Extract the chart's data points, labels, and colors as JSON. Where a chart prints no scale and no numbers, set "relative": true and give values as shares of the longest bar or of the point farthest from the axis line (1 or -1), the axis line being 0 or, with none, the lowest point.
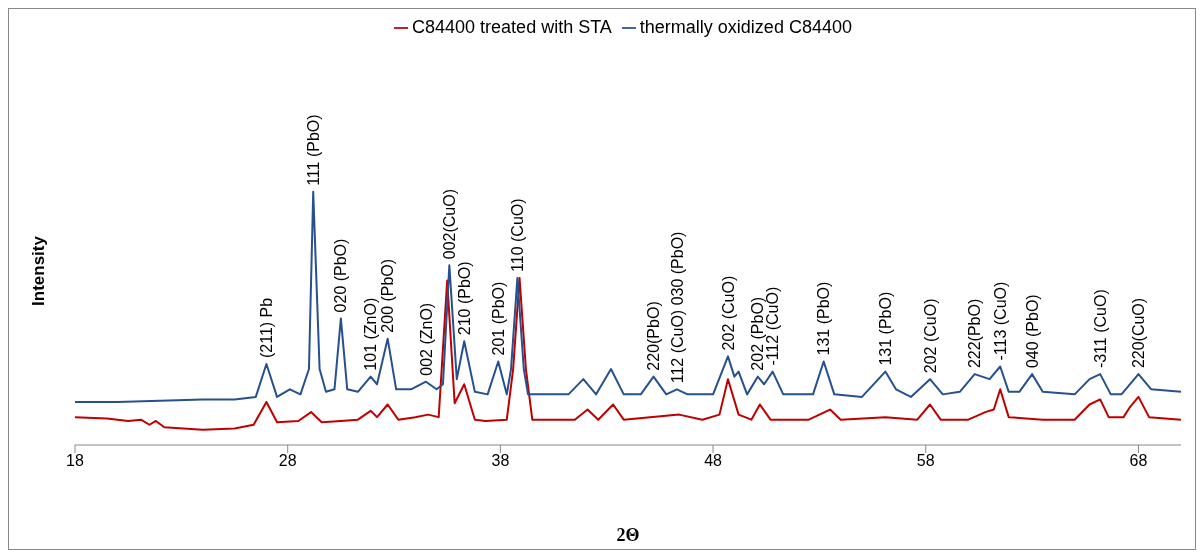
{
  "chart_data": {
    "type": "line",
    "relative": true,
    "xlabel": "2Θ",
    "ylabel": "Intensity",
    "xlim": [
      18,
      70
    ],
    "xticks": [
      18,
      28,
      38,
      48,
      58,
      68
    ],
    "legend": "top",
    "series": [
      {
        "name": "C84400 treated with STA",
        "color": "#c00000",
        "x": [
          18,
          19.5,
          20.5,
          21.1,
          21.5,
          21.8,
          22.2,
          24,
          25.5,
          26.4,
          27.0,
          27.5,
          28.5,
          29.1,
          29.6,
          30.5,
          31.3,
          31.9,
          32.2,
          32.7,
          33.2,
          34.0,
          34.6,
          35.1,
          35.5,
          35.85,
          36.3,
          36.8,
          37.3,
          38.3,
          38.6,
          38.9,
          39.2,
          39.5,
          41.5,
          42.1,
          42.6,
          43.3,
          43.8,
          46.4,
          47.5,
          48.3,
          48.7,
          49.2,
          49.8,
          50.2,
          50.7,
          52.5,
          53.5,
          54.0,
          56.1,
          57.6,
          58.2,
          58.7,
          60.0,
          60.8,
          61.2,
          61.5,
          61.9,
          63.5,
          65.0,
          65.7,
          66.2,
          66.6,
          67.3,
          67.6,
          68.0,
          68.5,
          70
        ],
        "values": [
          0.11,
          0.105,
          0.095,
          0.1,
          0.08,
          0.095,
          0.07,
          0.06,
          0.065,
          0.08,
          0.17,
          0.09,
          0.095,
          0.13,
          0.09,
          0.095,
          0.1,
          0.135,
          0.11,
          0.16,
          0.1,
          0.11,
          0.12,
          0.11,
          0.65,
          0.165,
          0.24,
          0.1,
          0.095,
          0.1,
          0.3,
          0.66,
          0.3,
          0.1,
          0.1,
          0.14,
          0.1,
          0.16,
          0.1,
          0.12,
          0.1,
          0.12,
          0.26,
          0.12,
          0.1,
          0.16,
          0.1,
          0.1,
          0.14,
          0.1,
          0.11,
          0.1,
          0.16,
          0.1,
          0.1,
          0.13,
          0.14,
          0.22,
          0.11,
          0.1,
          0.1,
          0.16,
          0.18,
          0.11,
          0.11,
          0.15,
          0.19,
          0.11,
          0.1
        ]
      },
      {
        "name": "thermally oxidized C84400",
        "color": "#27508f",
        "x": [
          18,
          20,
          22,
          24,
          25.5,
          26.5,
          27.0,
          27.5,
          28.1,
          28.6,
          29.0,
          29.2,
          29.5,
          29.8,
          30.2,
          30.5,
          30.8,
          31.3,
          31.9,
          32.2,
          32.7,
          33.1,
          33.8,
          34.5,
          35.0,
          35.3,
          35.6,
          35.95,
          36.3,
          36.8,
          37.4,
          37.9,
          38.3,
          38.5,
          38.8,
          39.1,
          39.3,
          41.2,
          41.9,
          42.5,
          43.2,
          43.8,
          44.6,
          45.2,
          45.8,
          46.3,
          46.8,
          48.0,
          48.7,
          49.0,
          49.2,
          49.6,
          50.1,
          50.4,
          50.8,
          51.3,
          52.7,
          53.2,
          53.7,
          55.0,
          56.1,
          56.6,
          57.3,
          58.2,
          58.8,
          59.6,
          60.3,
          61.0,
          61.5,
          61.9,
          62.4,
          63.0,
          63.5,
          65.0,
          65.7,
          66.2,
          66.7,
          67.2,
          68.0,
          68.6,
          70
        ],
        "values": [
          0.17,
          0.17,
          0.175,
          0.18,
          0.18,
          0.19,
          0.32,
          0.19,
          0.22,
          0.2,
          0.3,
          1.0,
          0.3,
          0.21,
          0.22,
          0.5,
          0.22,
          0.21,
          0.27,
          0.24,
          0.42,
          0.22,
          0.22,
          0.25,
          0.22,
          0.24,
          0.71,
          0.26,
          0.41,
          0.21,
          0.2,
          0.33,
          0.2,
          0.3,
          0.66,
          0.3,
          0.2,
          0.2,
          0.26,
          0.2,
          0.3,
          0.2,
          0.2,
          0.27,
          0.2,
          0.22,
          0.2,
          0.2,
          0.35,
          0.27,
          0.29,
          0.2,
          0.27,
          0.24,
          0.29,
          0.2,
          0.2,
          0.33,
          0.2,
          0.19,
          0.29,
          0.22,
          0.19,
          0.26,
          0.2,
          0.21,
          0.28,
          0.26,
          0.31,
          0.21,
          0.21,
          0.28,
          0.21,
          0.2,
          0.26,
          0.28,
          0.2,
          0.2,
          0.28,
          0.22,
          0.21
        ]
      }
    ],
    "annotations": [
      {
        "text": "(211) Pb",
        "x": 27.0,
        "y": 0.32
      },
      {
        "text": "111 (PbO)",
        "x": 29.2,
        "y": 1.0
      },
      {
        "text": "020 (PbO)",
        "x": 30.5,
        "y": 0.5
      },
      {
        "text": "101 (ZnO)",
        "x": 31.9,
        "y": 0.27
      },
      {
        "text": "200 (PbO)",
        "x": 32.7,
        "y": 0.42
      },
      {
        "text": "002 (ZnO)",
        "x": 34.5,
        "y": 0.25
      },
      {
        "text": "002(CuO)",
        "x": 35.6,
        "y": 0.71
      },
      {
        "text": "210 (PbO)",
        "x": 36.3,
        "y": 0.41
      },
      {
        "text": "201 (PbO)",
        "x": 37.9,
        "y": 0.33
      },
      {
        "text": "110 (CuO)",
        "x": 38.8,
        "y": 0.66
      },
      {
        "text": "220(PbO)",
        "x": 45.2,
        "y": 0.27
      },
      {
        "text": "112 (CuO) 030 (PbO)",
        "x": 46.3,
        "y": 0.22
      },
      {
        "text": "202 (CuO)",
        "x": 48.7,
        "y": 0.35
      },
      {
        "text": "202 (PbO)",
        "x": 50.1,
        "y": 0.27
      },
      {
        "text": "-112 (CuO)",
        "x": 50.8,
        "y": 0.29
      },
      {
        "text": "131 (PbO)",
        "x": 53.2,
        "y": 0.33
      },
      {
        "text": "131 (PbO)",
        "x": 56.1,
        "y": 0.29
      },
      {
        "text": "202 (CuO)",
        "x": 58.2,
        "y": 0.26
      },
      {
        "text": "222(PbO)",
        "x": 60.3,
        "y": 0.28
      },
      {
        "text": "-113 (CuO)",
        "x": 61.5,
        "y": 0.31
      },
      {
        "text": "040 (PbO)",
        "x": 63.0,
        "y": 0.28
      },
      {
        "text": "-311 (CuO)",
        "x": 66.2,
        "y": 0.28
      },
      {
        "text": "220(CuO)",
        "x": 68.0,
        "y": 0.28
      }
    ]
  }
}
